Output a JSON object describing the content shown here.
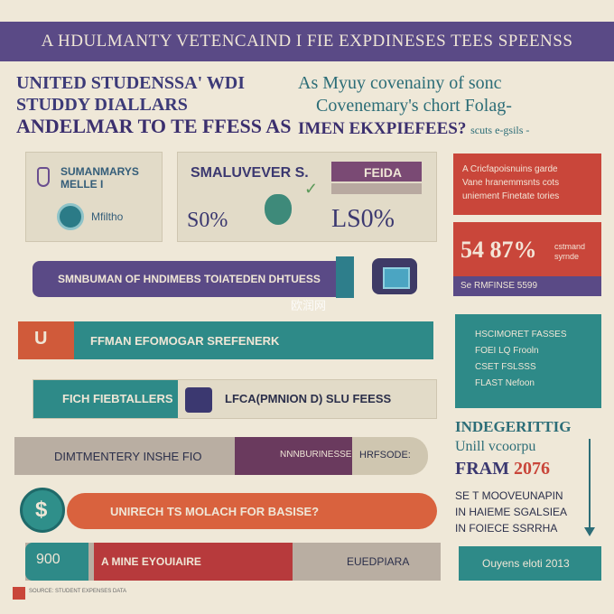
{
  "header": {
    "title": "A HDULMANTY VETENCAIND I FIE EXPDINESES TEES SPEENSS"
  },
  "headline_left": {
    "line1": "UNITED STUDENSSA' WDI",
    "line2": "STUDDY DIALLARS",
    "line3": "ANDELMAR TO TE FFESS AS"
  },
  "headline_right": {
    "line1": "As Myuy covenainy of sonc",
    "line2": "Covenemary's chort Folag-",
    "line3": "IMEN EKXPIEFEES?",
    "line3_small": "scuts e-gsils -"
  },
  "card_students": {
    "title": "SUMANMARYS\nMELLE I",
    "sub": "Mfiltho"
  },
  "card_pct": {
    "title": "SMALUVEVER S.",
    "tag": "FEIDA",
    "pct_left": "S0%",
    "pct_right": "LS0%"
  },
  "red_top": {
    "text": "A Cricfapoisnuins garde\nVane hranemmsnts cots\nuniement Finetate tories"
  },
  "red_big": {
    "number": "54 87%",
    "side": "cstmand\nsyrnde",
    "foot": "Se RMFINSE 5599"
  },
  "bars": {
    "bar1": "SMNBUMAN OF HNDIMEBS TOIATEDEN DHTUESS",
    "bar2_cap": "U",
    "bar2": "FFMAN EFOMOGAR SREFENERK",
    "bar3_left": "FICH FIEBTALLERS",
    "bar3_right": "LFCA(PMNION D) SLU FEESS",
    "bar4": "DIMTMENTERY INSHE FIO",
    "bar4_right": "NNNBURINESSE",
    "bar4_tail": "HRFSODE:",
    "bar5": "UNIRECH TS MOLACH FOR BASISE?",
    "coin": "$",
    "bar6_num": "900",
    "bar6_left": "A MINE EYOUIAIRE",
    "bar6_right": "EUEDPIARA"
  },
  "right_col": {
    "teal_text": "HSCIMORET FASSES\nFOEI LQ Frooln\nCSET FSLSSS\nFLAST Nefoon",
    "title1": "INDEGERITTIG",
    "title2": "Unill vcoorpu",
    "title3_a": "FRAM ",
    "title3_b": "2076",
    "notes": "SE T MOOVEUNAPIN\nIN HAIEME SGALSIEA\nIN FOIECE SSRRHA",
    "footer": "Ouyens eloti 2013"
  },
  "watermark": "欧润网",
  "footer_note": "SOURCE: STUDENT EXPENSES DATA"
}
